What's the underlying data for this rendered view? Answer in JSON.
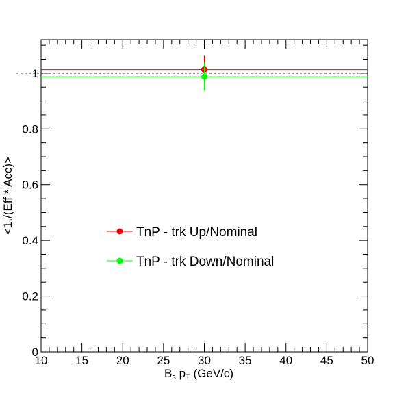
{
  "chart_data": {
    "type": "scatter",
    "title": "",
    "xlabel": {
      "main": "B",
      "sub1": "s",
      "mid": " p",
      "sub2": "T",
      "tail": " (GeV/c)"
    },
    "ylabel": "<1./(Eff * Acc)>",
    "xlim": [
      10,
      50
    ],
    "ylim": [
      0,
      1.12
    ],
    "x_ticks": [
      10,
      15,
      20,
      25,
      30,
      35,
      40,
      45,
      50
    ],
    "y_ticks": [
      0,
      0.2,
      0.4,
      0.6,
      0.8,
      1
    ],
    "x_tick_labels": [
      "10",
      "15",
      "20",
      "25",
      "30",
      "35",
      "40",
      "45",
      "50"
    ],
    "y_tick_labels": [
      "0",
      "0.2",
      "0.4",
      "0.6",
      "0.8",
      "1"
    ],
    "reference_line": {
      "y": 1.0,
      "style": "dashed",
      "color": "#000000"
    },
    "grid": false,
    "legend_position": "lower-left",
    "series": [
      {
        "name": "TnP - trk Up/Nominal",
        "color": "#ff0000",
        "points": [
          {
            "x": 30,
            "y": 1.013,
            "yerr": 0.05,
            "xerr_low": 20,
            "xerr_high": 20
          }
        ]
      },
      {
        "name": "TnP - trk Down/Nominal",
        "color": "#00ff00",
        "points": [
          {
            "x": 30,
            "y": 0.987,
            "yerr": 0.05,
            "xerr_low": 20,
            "xerr_high": 20
          }
        ]
      }
    ]
  }
}
